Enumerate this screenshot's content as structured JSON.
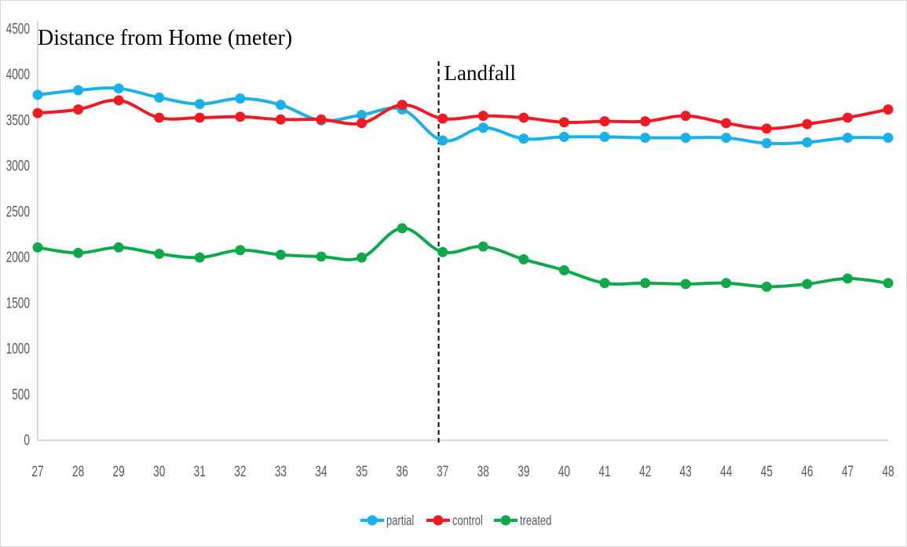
{
  "chart_data": {
    "type": "line",
    "title": "Distance from Home (meter)",
    "xlabel": "",
    "ylabel": "",
    "x": [
      27,
      28,
      29,
      30,
      31,
      32,
      33,
      34,
      35,
      36,
      37,
      38,
      39,
      40,
      41,
      42,
      43,
      44,
      45,
      46,
      47,
      48
    ],
    "yticks": [
      0,
      500,
      1000,
      1500,
      2000,
      2500,
      3000,
      3500,
      4000,
      4500
    ],
    "ylim": [
      0,
      4500
    ],
    "grid": false,
    "legend_position": "bottom-center",
    "series": [
      {
        "name": "partial",
        "color": "#1cb0e8",
        "values": [
          3780,
          3830,
          3850,
          3750,
          3680,
          3740,
          3670,
          3500,
          3560,
          3620,
          3280,
          3420,
          3300,
          3320,
          3320,
          3310,
          3310,
          3310,
          3250,
          3260,
          3310,
          3310
        ]
      },
      {
        "name": "control",
        "color": "#f01b22",
        "values": [
          3580,
          3620,
          3720,
          3530,
          3530,
          3540,
          3510,
          3510,
          3470,
          3670,
          3520,
          3550,
          3530,
          3480,
          3490,
          3490,
          3550,
          3470,
          3410,
          3460,
          3530,
          3620
        ]
      },
      {
        "name": "treated",
        "color": "#0fa84b",
        "values": [
          2110,
          2050,
          2110,
          2040,
          2000,
          2080,
          2030,
          2010,
          2000,
          2320,
          2060,
          2120,
          1980,
          1860,
          1720,
          1720,
          1710,
          1720,
          1680,
          1710,
          1770,
          1720
        ]
      }
    ],
    "annotations": [
      {
        "label": "Landfall",
        "x": 36.9,
        "style": "dashed-vertical-line"
      }
    ]
  }
}
